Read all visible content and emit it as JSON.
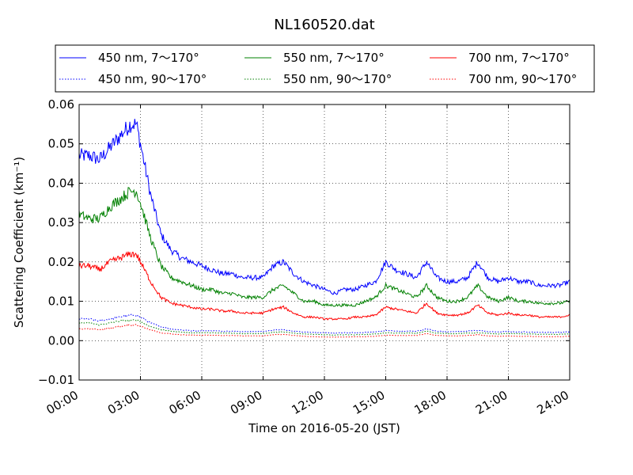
{
  "chart_data": {
    "type": "line",
    "title": "NL160520.dat",
    "xlabel": "Time on 2016-05-20 (JST)",
    "ylabel": "Scattering Coefficient (km⁻¹)",
    "xlim": [
      0,
      24
    ],
    "ylim": [
      -0.01,
      0.06
    ],
    "x_ticks": [
      "00:00",
      "03:00",
      "06:00",
      "09:00",
      "12:00",
      "15:00",
      "18:00",
      "21:00",
      "24:00"
    ],
    "y_ticks": [
      "−0.01",
      "0.00",
      "0.01",
      "0.02",
      "0.03",
      "0.04",
      "0.05",
      "0.06"
    ],
    "grid": true,
    "legend_position": "top",
    "x_hours": [
      0,
      0.5,
      1,
      1.5,
      2,
      2.5,
      2.8,
      3,
      3.5,
      4,
      4.5,
      5,
      5.5,
      6,
      6.5,
      7,
      7.5,
      8,
      8.5,
      9,
      9.5,
      10,
      10.5,
      11,
      11.5,
      12,
      12.5,
      13,
      13.5,
      14,
      14.5,
      15,
      15.5,
      16,
      16.5,
      17,
      17.5,
      18,
      18.5,
      19,
      19.5,
      20,
      20.5,
      21,
      21.5,
      22,
      22.5,
      23,
      23.5,
      24
    ],
    "series": [
      {
        "name": "450 nm, 7～170°",
        "color": "#0000ff",
        "style": "solid",
        "values": [
          0.047,
          0.047,
          0.046,
          0.049,
          0.052,
          0.055,
          0.055,
          0.05,
          0.037,
          0.027,
          0.023,
          0.021,
          0.02,
          0.019,
          0.018,
          0.017,
          0.017,
          0.016,
          0.016,
          0.016,
          0.019,
          0.02,
          0.017,
          0.015,
          0.014,
          0.013,
          0.012,
          0.013,
          0.013,
          0.014,
          0.015,
          0.02,
          0.018,
          0.017,
          0.016,
          0.02,
          0.016,
          0.015,
          0.015,
          0.016,
          0.02,
          0.016,
          0.015,
          0.016,
          0.015,
          0.015,
          0.014,
          0.014,
          0.014,
          0.015
        ]
      },
      {
        "name": "450 nm, 90～170°",
        "color": "#0000ff",
        "style": "dotted",
        "values": [
          0.0055,
          0.0055,
          0.005,
          0.0055,
          0.006,
          0.0065,
          0.0065,
          0.006,
          0.0045,
          0.0035,
          0.003,
          0.0027,
          0.0025,
          0.0025,
          0.0025,
          0.0024,
          0.0024,
          0.0023,
          0.0023,
          0.0023,
          0.0027,
          0.0028,
          0.0024,
          0.0022,
          0.0021,
          0.002,
          0.0019,
          0.002,
          0.002,
          0.0021,
          0.0022,
          0.0026,
          0.0024,
          0.0024,
          0.0024,
          0.003,
          0.0024,
          0.0023,
          0.0023,
          0.0024,
          0.0026,
          0.0023,
          0.0022,
          0.0023,
          0.0022,
          0.0022,
          0.0021,
          0.0021,
          0.0021,
          0.0022
        ]
      },
      {
        "name": "550 nm, 7～170°",
        "color": "#008000",
        "style": "solid",
        "values": [
          0.032,
          0.031,
          0.031,
          0.034,
          0.036,
          0.038,
          0.038,
          0.035,
          0.026,
          0.019,
          0.016,
          0.015,
          0.014,
          0.013,
          0.013,
          0.012,
          0.012,
          0.011,
          0.011,
          0.011,
          0.013,
          0.014,
          0.012,
          0.01,
          0.01,
          0.009,
          0.009,
          0.009,
          0.009,
          0.01,
          0.011,
          0.014,
          0.013,
          0.012,
          0.011,
          0.014,
          0.011,
          0.01,
          0.01,
          0.011,
          0.014,
          0.011,
          0.01,
          0.011,
          0.01,
          0.01,
          0.0095,
          0.0095,
          0.0095,
          0.01
        ]
      },
      {
        "name": "550 nm, 90～170°",
        "color": "#008000",
        "style": "dotted",
        "values": [
          0.0045,
          0.0045,
          0.004,
          0.0045,
          0.005,
          0.0052,
          0.0052,
          0.0048,
          0.0036,
          0.0028,
          0.0024,
          0.0022,
          0.002,
          0.002,
          0.002,
          0.0019,
          0.0019,
          0.0018,
          0.0018,
          0.0018,
          0.0021,
          0.0022,
          0.0019,
          0.0017,
          0.0016,
          0.0015,
          0.0014,
          0.0015,
          0.0015,
          0.0016,
          0.0017,
          0.002,
          0.0019,
          0.0019,
          0.0019,
          0.0024,
          0.0019,
          0.0018,
          0.0018,
          0.0019,
          0.002,
          0.0018,
          0.0017,
          0.0018,
          0.0017,
          0.0017,
          0.0016,
          0.0016,
          0.0016,
          0.0017
        ]
      },
      {
        "name": "700 nm, 7～170°",
        "color": "#ff0000",
        "style": "solid",
        "values": [
          0.019,
          0.019,
          0.018,
          0.02,
          0.021,
          0.022,
          0.022,
          0.02,
          0.015,
          0.011,
          0.0095,
          0.009,
          0.0085,
          0.008,
          0.008,
          0.0075,
          0.0075,
          0.007,
          0.007,
          0.007,
          0.008,
          0.0085,
          0.007,
          0.006,
          0.006,
          0.0055,
          0.0055,
          0.0055,
          0.006,
          0.006,
          0.0065,
          0.0085,
          0.008,
          0.0075,
          0.007,
          0.0095,
          0.007,
          0.0065,
          0.0065,
          0.007,
          0.009,
          0.007,
          0.0065,
          0.007,
          0.0065,
          0.0065,
          0.006,
          0.006,
          0.006,
          0.0065
        ]
      },
      {
        "name": "700 nm, 90～170°",
        "color": "#ff0000",
        "style": "dotted",
        "values": [
          0.003,
          0.003,
          0.0028,
          0.0032,
          0.0036,
          0.004,
          0.004,
          0.0037,
          0.0027,
          0.002,
          0.0017,
          0.0015,
          0.0014,
          0.0014,
          0.0014,
          0.0013,
          0.0013,
          0.0012,
          0.0012,
          0.0012,
          0.0015,
          0.0016,
          0.0013,
          0.0011,
          0.001,
          0.0009,
          0.0009,
          0.0009,
          0.001,
          0.001,
          0.0011,
          0.0014,
          0.0013,
          0.0013,
          0.0013,
          0.0018,
          0.0013,
          0.0012,
          0.0012,
          0.0013,
          0.0015,
          0.0012,
          0.0011,
          0.0012,
          0.0011,
          0.0011,
          0.001,
          0.001,
          0.001,
          0.0011
        ]
      }
    ]
  }
}
